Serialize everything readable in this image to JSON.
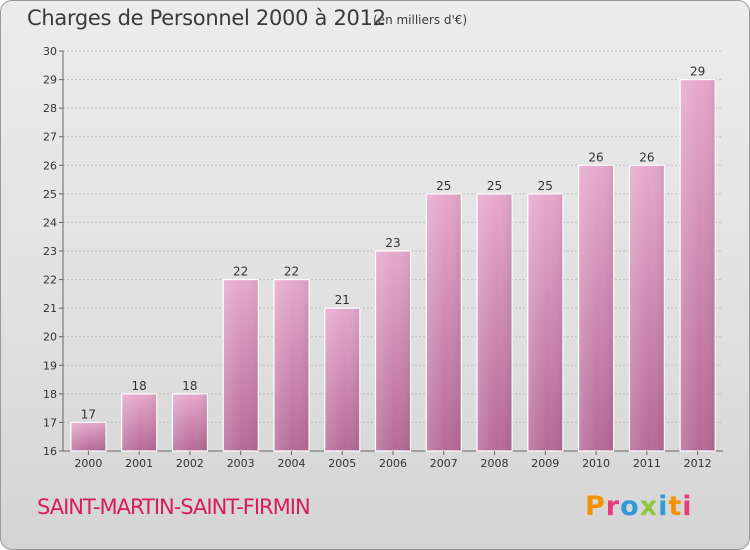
{
  "header": {
    "title": "Charges de Personnel 2000 à 2012",
    "subtitle": "(en milliers d'€)"
  },
  "footer": {
    "place": "SAINT-MARTIN-SAINT-FIRMIN",
    "brand": "Proxiti"
  },
  "colors": {
    "bar_light": "#e6a8cc",
    "bar_dark": "#b56a95",
    "place_text": "#d81b5a",
    "grid": "#bdbdbd",
    "brand_letters": [
      "#f39200",
      "#e63b7a",
      "#2d9bd7",
      "#8cc63f",
      "#2d9bd7",
      "#f39200",
      "#e63b7a"
    ]
  },
  "chart_data": {
    "type": "bar",
    "title": "Charges de Personnel 2000 à 2012",
    "subtitle": "(en milliers d'€)",
    "categories": [
      "2000",
      "2001",
      "2002",
      "2003",
      "2004",
      "2005",
      "2006",
      "2007",
      "2008",
      "2009",
      "2010",
      "2011",
      "2012"
    ],
    "values": [
      17,
      18,
      18,
      22,
      22,
      21,
      23,
      25,
      25,
      25,
      26,
      26,
      29
    ],
    "ylim": [
      16,
      30
    ],
    "yticks": [
      16,
      17,
      18,
      19,
      20,
      21,
      22,
      23,
      24,
      25,
      26,
      27,
      28,
      29,
      30
    ],
    "grid": true,
    "xlabel": "",
    "ylabel": ""
  }
}
